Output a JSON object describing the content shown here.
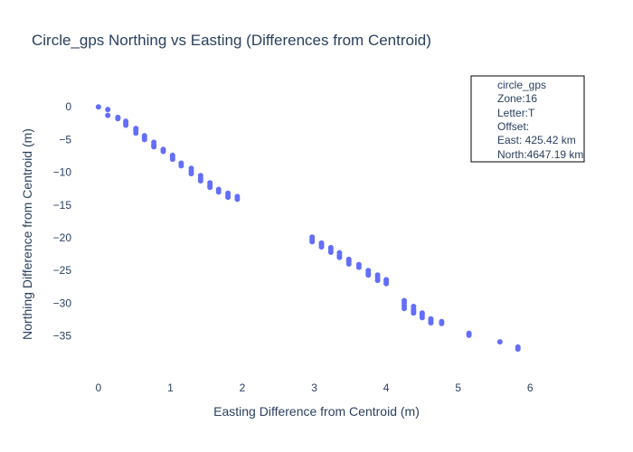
{
  "chart_data": {
    "type": "scatter",
    "title": "Circle_gps Northing vs Easting (Differences from Centroid)",
    "xlabel": "Easting Difference from Centroid (m)",
    "ylabel": "Northing Difference from Centroid (m)",
    "xlim": [
      -0.3,
      6.55
    ],
    "ylim": [
      -40.3,
      3.9
    ],
    "xticks": [
      0,
      1,
      2,
      3,
      4,
      5,
      6
    ],
    "yticks": [
      0,
      -5,
      -10,
      -15,
      -20,
      -25,
      -30,
      -35
    ],
    "series": [
      {
        "name": "circle_gps",
        "color": "#636efa",
        "points": [
          [
            0.0,
            0.0
          ],
          [
            0.13,
            -0.4
          ],
          [
            0.13,
            -1.3
          ],
          [
            0.27,
            -1.6
          ],
          [
            0.27,
            -1.8
          ],
          [
            0.38,
            -2.2
          ],
          [
            0.38,
            -2.5
          ],
          [
            0.38,
            -2.8
          ],
          [
            0.52,
            -3.3
          ],
          [
            0.52,
            -3.6
          ],
          [
            0.52,
            -4.0
          ],
          [
            0.64,
            -4.4
          ],
          [
            0.64,
            -4.7
          ],
          [
            0.64,
            -5.0
          ],
          [
            0.77,
            -5.4
          ],
          [
            0.77,
            -5.8
          ],
          [
            0.77,
            -6.1
          ],
          [
            0.9,
            -6.5
          ],
          [
            0.9,
            -6.8
          ],
          [
            1.03,
            -7.4
          ],
          [
            1.03,
            -7.7
          ],
          [
            1.03,
            -8.0
          ],
          [
            1.15,
            -8.6
          ],
          [
            1.15,
            -9.0
          ],
          [
            1.29,
            -9.4
          ],
          [
            1.29,
            -9.8
          ],
          [
            1.29,
            -10.2
          ],
          [
            1.42,
            -10.5
          ],
          [
            1.42,
            -10.9
          ],
          [
            1.42,
            -11.3
          ],
          [
            1.55,
            -11.6
          ],
          [
            1.55,
            -12.0
          ],
          [
            1.55,
            -12.3
          ],
          [
            1.67,
            -12.6
          ],
          [
            1.67,
            -13.0
          ],
          [
            1.8,
            -13.2
          ],
          [
            1.8,
            -13.5
          ],
          [
            1.8,
            -13.8
          ],
          [
            1.93,
            -13.7
          ],
          [
            1.93,
            -14.1
          ],
          [
            2.97,
            -19.9
          ],
          [
            2.97,
            -20.3
          ],
          [
            2.97,
            -20.6
          ],
          [
            3.1,
            -20.8
          ],
          [
            3.1,
            -21.1
          ],
          [
            3.1,
            -21.4
          ],
          [
            3.23,
            -21.5
          ],
          [
            3.23,
            -21.8
          ],
          [
            3.23,
            -22.2
          ],
          [
            3.35,
            -22.3
          ],
          [
            3.35,
            -22.7
          ],
          [
            3.35,
            -23.0
          ],
          [
            3.48,
            -23.3
          ],
          [
            3.48,
            -23.6
          ],
          [
            3.48,
            -24.0
          ],
          [
            3.62,
            -24.1
          ],
          [
            3.62,
            -24.5
          ],
          [
            3.75,
            -25.0
          ],
          [
            3.75,
            -25.4
          ],
          [
            3.75,
            -25.7
          ],
          [
            3.88,
            -25.7
          ],
          [
            3.88,
            -26.1
          ],
          [
            3.88,
            -26.5
          ],
          [
            4.0,
            -26.4
          ],
          [
            4.0,
            -26.7
          ],
          [
            4.0,
            -27.0
          ],
          [
            4.25,
            -29.6
          ],
          [
            4.25,
            -30.0
          ],
          [
            4.25,
            -30.4
          ],
          [
            4.25,
            -30.8
          ],
          [
            4.38,
            -30.5
          ],
          [
            4.38,
            -30.9
          ],
          [
            4.38,
            -31.2
          ],
          [
            4.38,
            -31.5
          ],
          [
            4.5,
            -31.5
          ],
          [
            4.5,
            -31.8
          ],
          [
            4.5,
            -32.2
          ],
          [
            4.62,
            -32.4
          ],
          [
            4.62,
            -32.7
          ],
          [
            4.62,
            -33.0
          ],
          [
            4.77,
            -32.8
          ],
          [
            4.77,
            -33.1
          ],
          [
            5.15,
            -34.6
          ],
          [
            5.15,
            -34.9
          ],
          [
            5.58,
            -35.9
          ],
          [
            5.83,
            -36.7
          ],
          [
            5.83,
            -37.0
          ]
        ]
      }
    ],
    "legend": {
      "position": "top-right",
      "lines": [
        "circle_gps",
        "Zone:16",
        "Letter:T",
        "Offset:",
        "East: 425.42 km",
        "North:4647.19 km"
      ]
    },
    "grid": false
  }
}
